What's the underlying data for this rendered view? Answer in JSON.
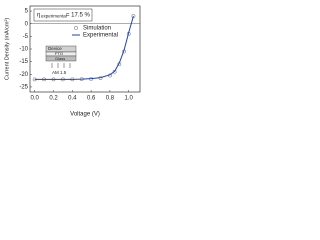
{
  "chart_data": {
    "type": "line",
    "annotation": {
      "symbol": "η",
      "subscript": "experimental",
      "text": "= 17.5 %"
    },
    "x_label": "Voltage (V)",
    "y_label": "Current Density (mA/cm²)",
    "inset": {
      "layers": [
        "Device",
        "FTO",
        "Glass"
      ],
      "light": "AM 1.5"
    },
    "x": [
      0,
      0.1,
      0.2,
      0.3,
      0.4,
      0.5,
      0.6,
      0.7,
      0.8,
      0.85,
      0.9,
      0.95,
      1.0,
      1.05
    ],
    "series": [
      {
        "name": "Simulation",
        "color": "#808080",
        "values": [
          -22,
          -22,
          -22,
          -22,
          -22,
          -21.9,
          -21.8,
          -21.5,
          -20.5,
          -19,
          -16,
          -11,
          -4,
          3
        ]
      },
      {
        "name": "Experimental",
        "color": "#1f3fbf",
        "values": [
          -22,
          -22,
          -22,
          -22,
          -22,
          -21.9,
          -21.7,
          -21.3,
          -20.2,
          -18.8,
          -15.5,
          -10.5,
          -3.5,
          3
        ]
      }
    ],
    "xlim": [
      -0.05,
      1.12
    ],
    "ylim": [
      -27,
      7
    ],
    "xticks": [
      {
        "value": 0,
        "label": "0.0"
      },
      0.2,
      0.4,
      0.6,
      0.8,
      {
        "value": 1,
        "label": "1.0"
      }
    ],
    "yticks": [
      5,
      0,
      -5,
      -10,
      -15,
      -20,
      -25
    ],
    "legend": "upper-left"
  }
}
